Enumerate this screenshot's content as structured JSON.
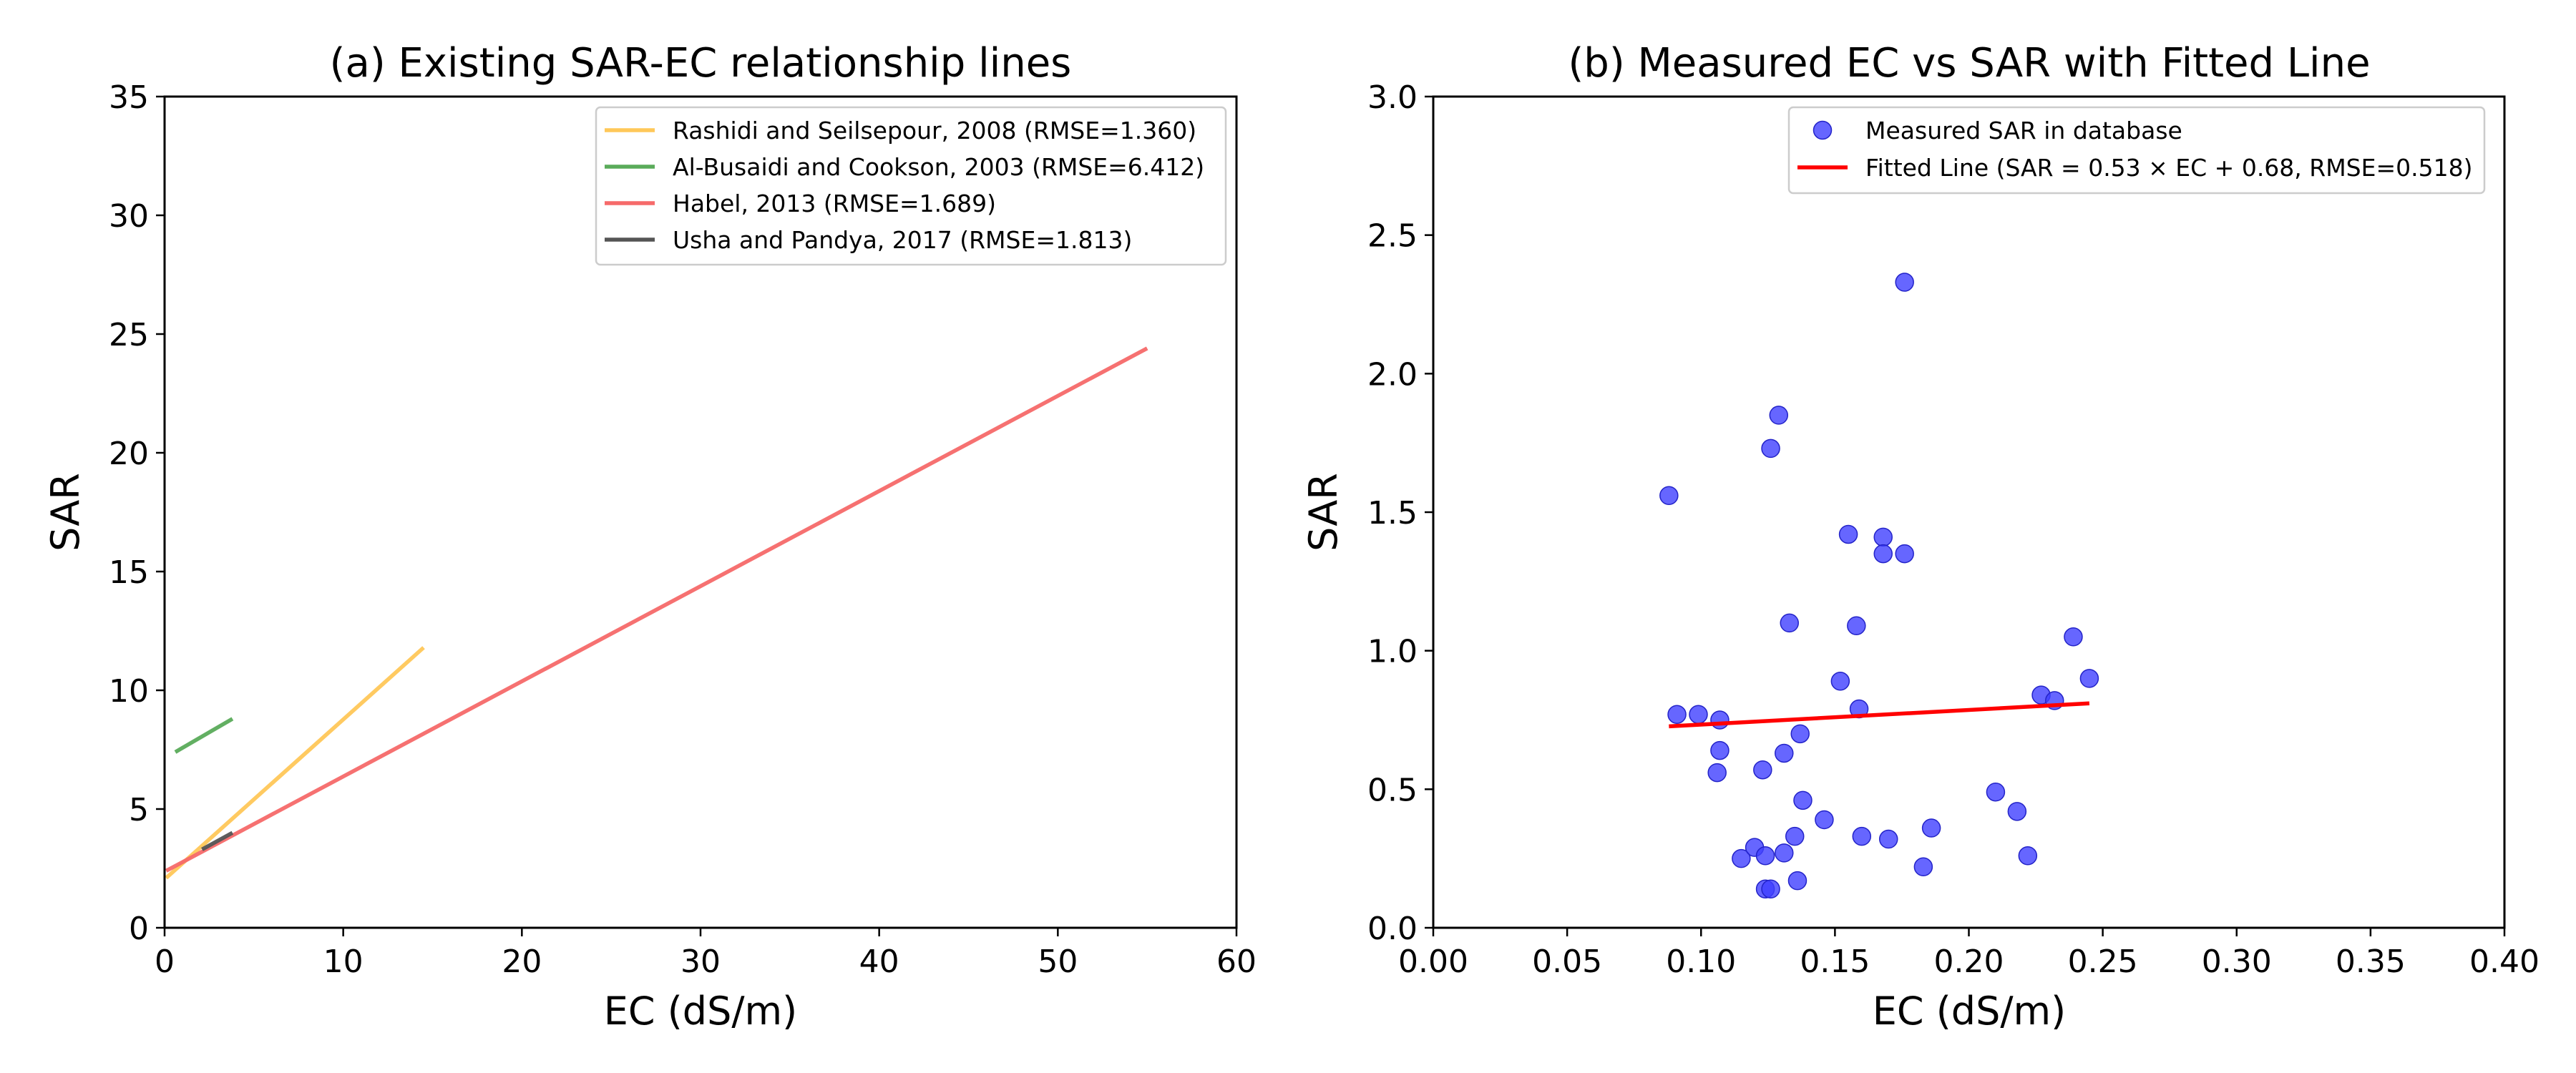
{
  "chart_data": [
    {
      "type": "line",
      "title": "(a) Existing SAR-EC relationship lines",
      "xlabel": "EC (dS/m)",
      "ylabel": "SAR",
      "xlim": [
        0,
        60
      ],
      "ylim": [
        0,
        35
      ],
      "xticks": [
        "0",
        "10",
        "20",
        "30",
        "40",
        "50",
        "60"
      ],
      "yticks": [
        "0",
        "5",
        "10",
        "15",
        "20",
        "25",
        "30",
        "35"
      ],
      "grid": false,
      "legend_position": "upper right",
      "series": [
        {
          "name": "Rashidi and Seilsepour, 2008 (RMSE=1.360)",
          "color": "#ffc859",
          "x": [
            0.09,
            14.5
          ],
          "y": [
            2.1,
            11.8
          ]
        },
        {
          "name": "Al-Busaidi and Cookson, 2003 (RMSE=6.412)",
          "color": "#5aab5a",
          "x": [
            0.6,
            3.8
          ],
          "y": [
            7.4,
            8.8
          ]
        },
        {
          "name": "Habel, 2013 (RMSE=1.689)",
          "color": "#f66a6a",
          "x": [
            0.09,
            55.0
          ],
          "y": [
            2.4,
            24.4
          ]
        },
        {
          "name": "Usha and Pandya, 2017 (RMSE=1.813)",
          "color": "#555555",
          "x": [
            2.1,
            3.8
          ],
          "y": [
            3.3,
            4.0
          ]
        }
      ]
    },
    {
      "type": "scatter",
      "title": "(b) Measured EC vs SAR with Fitted Line",
      "xlabel": "EC (dS/m)",
      "ylabel": "SAR",
      "xlim": [
        0.0,
        0.4
      ],
      "ylim": [
        0.0,
        3.0
      ],
      "xticks": [
        "0.00",
        "0.05",
        "0.10",
        "0.15",
        "0.20",
        "0.25",
        "0.30",
        "0.35",
        "0.40"
      ],
      "yticks": [
        "0.0",
        "0.5",
        "1.0",
        "1.5",
        "2.0",
        "2.5",
        "3.0"
      ],
      "grid": false,
      "legend_position": "upper center",
      "series": [
        {
          "name": "Measured SAR in database",
          "color": "#4040ff",
          "points": [
            [
              0.088,
              1.56
            ],
            [
              0.091,
              0.77
            ],
            [
              0.099,
              0.77
            ],
            [
              0.107,
              0.75
            ],
            [
              0.107,
              0.64
            ],
            [
              0.106,
              0.56
            ],
            [
              0.115,
              0.25
            ],
            [
              0.12,
              0.29
            ],
            [
              0.123,
              0.57
            ],
            [
              0.124,
              0.14
            ],
            [
              0.124,
              0.26
            ],
            [
              0.126,
              0.14
            ],
            [
              0.126,
              1.73
            ],
            [
              0.129,
              1.85
            ],
            [
              0.131,
              0.27
            ],
            [
              0.131,
              0.63
            ],
            [
              0.133,
              1.1
            ],
            [
              0.135,
              0.33
            ],
            [
              0.136,
              0.17
            ],
            [
              0.137,
              0.7
            ],
            [
              0.138,
              0.46
            ],
            [
              0.146,
              0.39
            ],
            [
              0.152,
              0.89
            ],
            [
              0.155,
              1.42
            ],
            [
              0.158,
              1.09
            ],
            [
              0.159,
              0.79
            ],
            [
              0.16,
              0.33
            ],
            [
              0.168,
              1.41
            ],
            [
              0.168,
              1.35
            ],
            [
              0.17,
              0.32
            ],
            [
              0.176,
              2.33
            ],
            [
              0.176,
              1.35
            ],
            [
              0.183,
              0.22
            ],
            [
              0.186,
              0.36
            ],
            [
              0.21,
              0.49
            ],
            [
              0.218,
              0.42
            ],
            [
              0.222,
              0.26
            ],
            [
              0.227,
              0.84
            ],
            [
              0.232,
              0.82
            ],
            [
              0.239,
              1.05
            ],
            [
              0.245,
              0.9
            ]
          ]
        },
        {
          "name": "Fitted Line (SAR = 0.53 × EC + 0.68, RMSE=0.518)",
          "color": "#ff0000",
          "x": [
            0.088,
            0.245
          ],
          "y": [
            0.727,
            0.81
          ]
        }
      ]
    }
  ]
}
